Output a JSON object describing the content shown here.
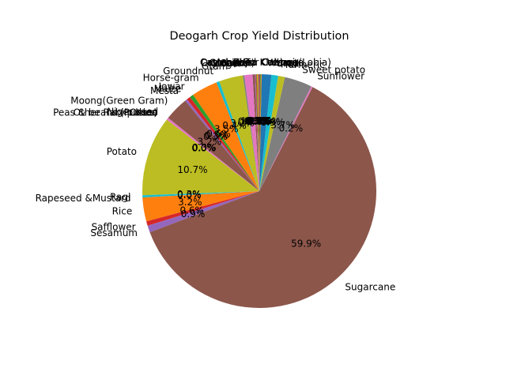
{
  "chart_data": {
    "type": "pie",
    "title": "Deogarh Crop Yield Distribution",
    "start_angle_deg": 90,
    "direction": "counterclockwise",
    "slices": [
      {
        "label": "Arhar/Tur",
        "value": 0.1,
        "pct": "0.1%",
        "color": "#1f77b4"
      },
      {
        "label": "Bajra",
        "value": 0.2,
        "pct": "0.2%",
        "color": "#ff7f0e"
      },
      {
        "label": "Castor seed",
        "value": 0.1,
        "pct": "0.1%",
        "color": "#2ca02c"
      },
      {
        "label": "Coriander",
        "value": 0.1,
        "pct": "0.1%",
        "color": "#d62728"
      },
      {
        "label": "Cotton(lint)",
        "value": 0.1,
        "pct": "0.1%",
        "color": "#9467bd"
      },
      {
        "label": "Dry chillies",
        "value": 0.3,
        "pct": "0.3%",
        "color": "#8c564b"
      },
      {
        "label": "Garlic",
        "value": 1.1,
        "pct": "1.1%",
        "color": "#e377c2"
      },
      {
        "label": "Ginger",
        "value": 0.2,
        "pct": "0.2%",
        "color": "#7f7f7f"
      },
      {
        "label": "Gram",
        "value": 3.2,
        "pct": "3.2%",
        "color": "#bcbd22"
      },
      {
        "label": "Groundnut",
        "value": 0.4,
        "pct": "0.4%",
        "color": "#17becf"
      },
      {
        "label": "Horse-gram",
        "value": 3.5,
        "pct": "3.5%",
        "color": "#ff7f0e"
      },
      {
        "label": "Jowar",
        "value": 0.5,
        "pct": "0.5%",
        "color": "#2ca02c"
      },
      {
        "label": "Maize",
        "value": 0.5,
        "pct": "0.5%",
        "color": "#d62728"
      },
      {
        "label": "Mesta",
        "value": 0.3,
        "pct": "0.3%",
        "color": "#9467bd"
      },
      {
        "label": "Moong(Green Gram)",
        "value": 3.2,
        "pct": "3.2%",
        "color": "#8c564b"
      },
      {
        "label": "Niger seed",
        "value": 0.3,
        "pct": "0.3%",
        "color": "#e377c2"
      },
      {
        "label": "Onion",
        "value": 0.0,
        "pct": "0.0%",
        "color": "#7f7f7f"
      },
      {
        "label": "Other Rabi pulses",
        "value": 0.0,
        "pct": "0.0%",
        "color": "#1f77b4"
      },
      {
        "label": "Peas & beans (Pulses)",
        "value": 0.0,
        "pct": "0.0%",
        "color": "#ff7f0e"
      },
      {
        "label": "Potato",
        "value": 10.7,
        "pct": "10.7%",
        "color": "#bcbd22"
      },
      {
        "label": "Ragi",
        "value": 0.3,
        "pct": "0.3%",
        "color": "#17becf"
      },
      {
        "label": "Rapeseed &Mustard",
        "value": 0.0,
        "pct": "0.0%",
        "color": "#1f77b4"
      },
      {
        "label": "Rice",
        "value": 3.2,
        "pct": "3.2%",
        "color": "#ff7f0e"
      },
      {
        "label": "Safflower",
        "value": 0.6,
        "pct": "0.6%",
        "color": "#d62728"
      },
      {
        "label": "Sesamum",
        "value": 0.9,
        "pct": "0.9%",
        "color": "#9467bd"
      },
      {
        "label": "Sugarcane",
        "value": 59.9,
        "pct": "59.9%",
        "color": "#8c564b"
      },
      {
        "label": "Sunflower",
        "value": 0.2,
        "pct": "0.2%",
        "color": "#e377c2"
      },
      {
        "label": "Sweet potato",
        "value": 3.7,
        "pct": "3.7%",
        "color": "#7f7f7f"
      },
      {
        "label": "Turmeric",
        "value": 0.9,
        "pct": "0.9%",
        "color": "#bcbd22"
      },
      {
        "label": "Urad",
        "value": 0.9,
        "pct": "0.9%",
        "color": "#17becf"
      },
      {
        "label": "Wheat",
        "value": 1.3,
        "pct": "1.3%",
        "color": "#1f77b4"
      },
      {
        "label": "Cabbage",
        "value": 0.1,
        "pct": "0.1%",
        "color": "#ff7f0e"
      },
      {
        "label": "Cowpea(Lobia)",
        "value": 0.1,
        "pct": "0.1%",
        "color": "#2ca02c"
      },
      {
        "label": "Khesari",
        "value": 0.1,
        "pct": "0.1%",
        "color": "#d62728"
      }
    ]
  }
}
